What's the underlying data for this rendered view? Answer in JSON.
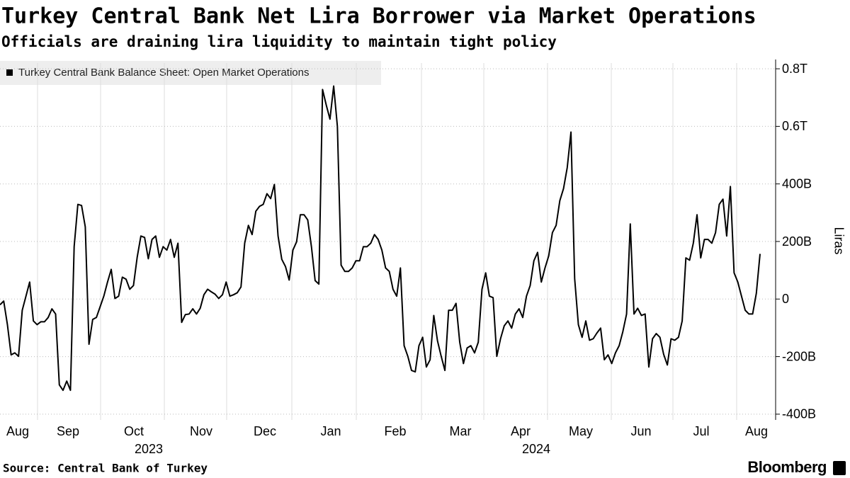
{
  "chart_data": {
    "type": "line",
    "title": "Turkey Central Bank Net Lira Borrower via Market Operations",
    "subtitle": "Officials are draining lira liquidity to maintain tight policy",
    "y_label": "Liras",
    "source": "Source: Central Bank of Turkey",
    "brand": "Bloomberg",
    "month_labels": [
      "Aug",
      "Sep",
      "Oct",
      "Nov",
      "Dec",
      "Jan",
      "Feb",
      "Mar",
      "Apr",
      "May",
      "Jun",
      "Jul",
      "Aug"
    ],
    "year_labels": [
      "2023",
      "2024"
    ],
    "ylim": [
      -420,
      820
    ],
    "yticks": [
      {
        "value": 800,
        "label": "0.8T"
      },
      {
        "value": 600,
        "label": "0.6T"
      },
      {
        "value": 400,
        "label": "400B"
      },
      {
        "value": 200,
        "label": "200B"
      },
      0,
      {
        "value": -200,
        "label": "-200B"
      },
      {
        "value": -400,
        "label": "-400B"
      }
    ],
    "grid": true,
    "series": [
      {
        "name": "Turkey Central Bank Balance Sheet: Open Market Operations",
        "color": "#000000",
        "values": [
          -20,
          -7,
          -89,
          -194,
          -187,
          -199,
          -39,
          10,
          59,
          -76,
          -89,
          -79,
          -79,
          -64,
          -34,
          -52,
          -298,
          -317,
          -285,
          -317,
          182,
          329,
          325,
          251,
          -157,
          -71,
          -64,
          -27,
          10,
          59,
          103,
          2,
          10,
          76,
          69,
          34,
          47,
          145,
          219,
          214,
          140,
          207,
          219,
          145,
          182,
          170,
          207,
          145,
          194,
          -81,
          -54,
          -52,
          -34,
          -52,
          -32,
          15,
          34,
          25,
          17,
          2,
          15,
          59,
          10,
          15,
          22,
          42,
          194,
          256,
          224,
          305,
          322,
          329,
          366,
          349,
          398,
          219,
          138,
          113,
          66,
          170,
          199,
          293,
          293,
          275,
          182,
          64,
          52,
          728,
          674,
          625,
          740,
          600,
          118,
          96,
          96,
          108,
          133,
          133,
          182,
          182,
          194,
          224,
          207,
          170,
          108,
          96,
          34,
          10,
          108,
          -162,
          -199,
          -248,
          -253,
          -162,
          -133,
          -236,
          -211,
          -57,
          -145,
          -199,
          -248,
          -39,
          -39,
          -15,
          -150,
          -224,
          -170,
          -162,
          -187,
          -150,
          34,
          91,
          10,
          5,
          -199,
          -138,
          -93,
          -76,
          -101,
          -52,
          -34,
          -64,
          10,
          47,
          133,
          162,
          59,
          108,
          150,
          231,
          256,
          342,
          384,
          457,
          580,
          71,
          -89,
          -133,
          -76,
          -143,
          -138,
          -118,
          -101,
          -211,
          -194,
          -224,
          -187,
          -162,
          -113,
          -52,
          261,
          -52,
          -32,
          -57,
          -52,
          -236,
          -138,
          -120,
          -133,
          -192,
          -229,
          -138,
          -143,
          -133,
          -76,
          143,
          135,
          194,
          293,
          143,
          207,
          207,
          194,
          231,
          329,
          347,
          219,
          391,
          91,
          59,
          10,
          -39,
          -52,
          -52,
          20,
          157
        ]
      }
    ]
  }
}
